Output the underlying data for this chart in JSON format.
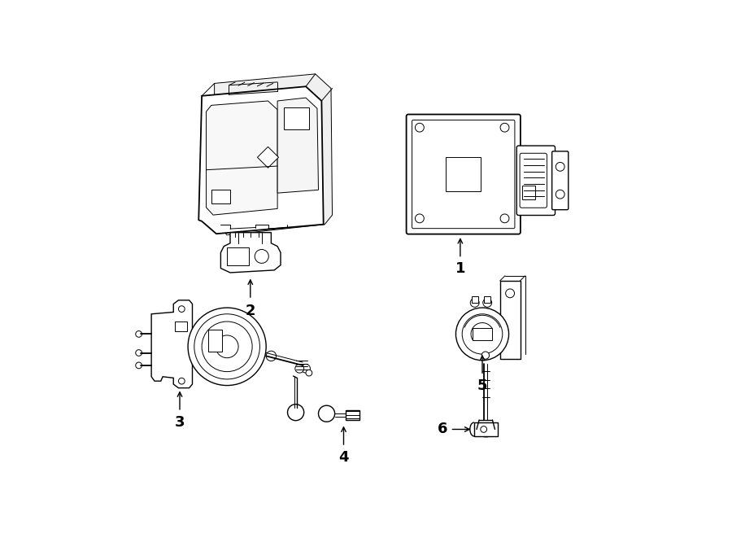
{
  "background_color": "#ffffff",
  "line_color": "#000000",
  "figsize": [
    9.0,
    6.61
  ],
  "dpi": 100
}
